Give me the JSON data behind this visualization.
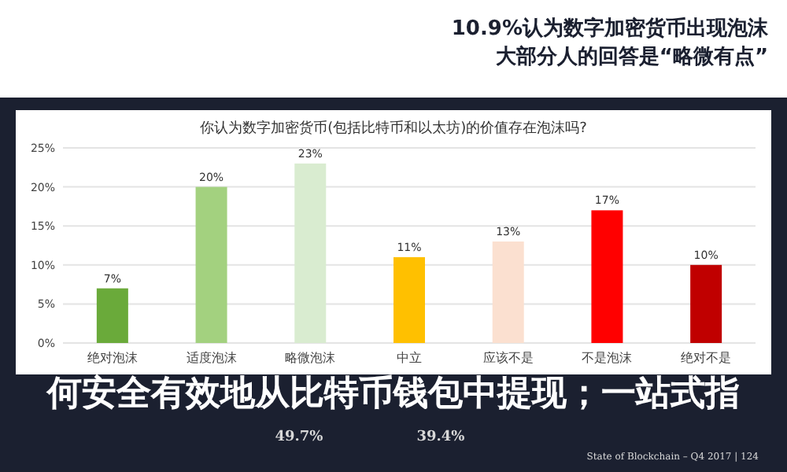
{
  "chart_data": {
    "type": "bar",
    "title": "你认为数字加密货币(包括比特币和以太坊)的价值存在泡沫吗?",
    "subtitle": "10.9%认为数字加密货币出现泡沫",
    "categories": [
      "绝对泡沫",
      "适度泡沫",
      "略微泡沫",
      "中立",
      "应该不是",
      "不是泡沫",
      "绝对不是"
    ],
    "values": [
      7,
      20,
      23,
      11,
      13,
      17,
      10
    ],
    "colors": [
      "#6aaa3a",
      "#a3d17f",
      "#d9ecd0",
      "#ffc000",
      "#fbe0d0",
      "#ff0000",
      "#c00000"
    ],
    "value_labels": [
      "7%",
      "20%",
      "23%",
      "11%",
      "13%",
      "17%",
      "10%"
    ],
    "ylim": [
      0,
      25
    ],
    "yticks": [
      {
        "value": 0,
        "label": "0%"
      },
      {
        "value": 5,
        "label": "5%"
      },
      {
        "value": 10,
        "label": "10%"
      },
      {
        "value": 15,
        "label": "15%"
      },
      {
        "value": 20,
        "label": "20%"
      },
      {
        "value": 25,
        "label": "25%"
      }
    ],
    "grid": "y",
    "annotations": [
      "大部分人的回答是“略微有点”",
      "何安全有效地从比特币钱包中提现；一站式指",
      "49.7%",
      "39.4%",
      "State of Blockchain – Q4 2017  |  124"
    ]
  }
}
